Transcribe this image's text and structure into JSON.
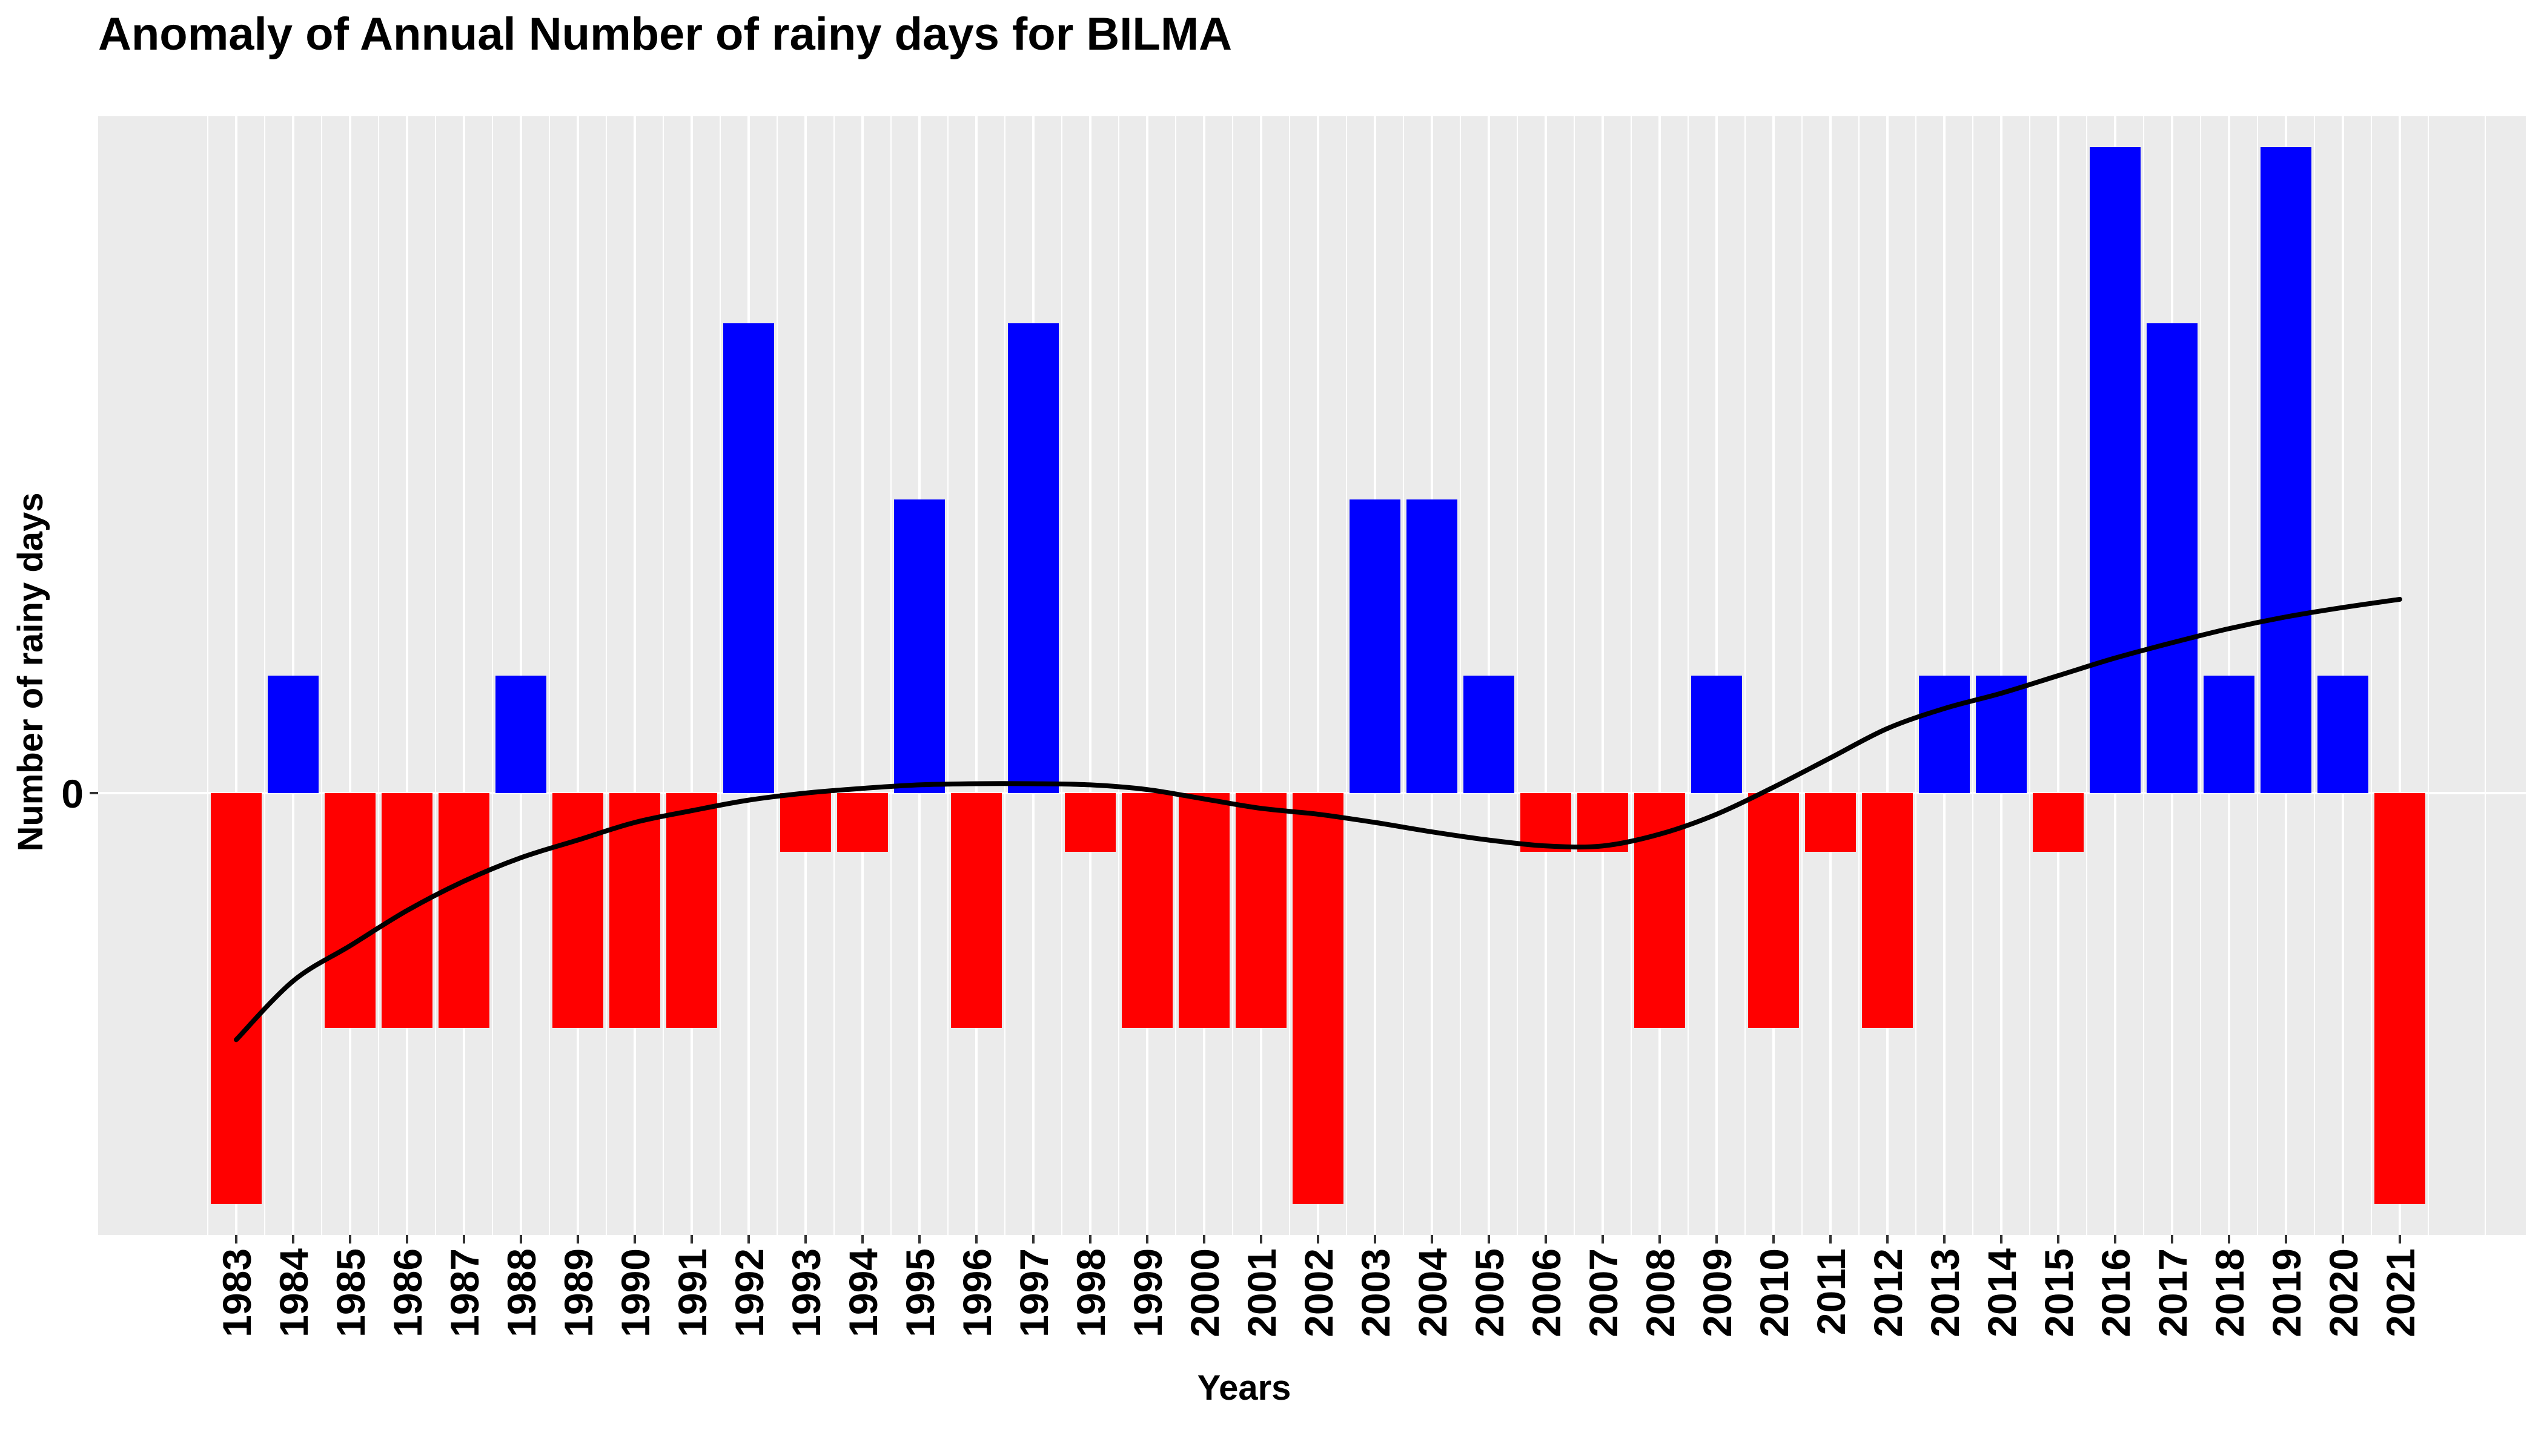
{
  "chart_data": {
    "type": "bar",
    "title": "Anomaly of Annual Number of rainy days for BILMA",
    "xlabel": "Years",
    "ylabel": "Number of rainy days",
    "categories": [
      "1983",
      "1984",
      "1985",
      "1986",
      "1987",
      "1988",
      "1989",
      "1990",
      "1991",
      "1992",
      "1993",
      "1994",
      "1995",
      "1996",
      "1997",
      "1998",
      "1999",
      "2000",
      "2001",
      "2002",
      "2003",
      "2004",
      "2005",
      "2006",
      "2007",
      "2008",
      "2009",
      "2010",
      "2011",
      "2012",
      "2013",
      "2014",
      "2015",
      "2016",
      "2017",
      "2018",
      "2019",
      "2020",
      "2021"
    ],
    "values": [
      -3.5,
      1,
      -2,
      -2,
      -2,
      1,
      -2,
      -2,
      -2,
      4,
      -0.5,
      -0.5,
      2.5,
      -2,
      4,
      -0.5,
      -2,
      -2,
      -2,
      -3.5,
      2.5,
      2.5,
      1,
      -0.5,
      -0.5,
      -2,
      1,
      -2,
      -0.5,
      -2,
      1,
      1,
      -0.5,
      5.5,
      4,
      1,
      5.5,
      1,
      -3.5
    ],
    "trend": [
      -2.1,
      -1.6,
      -1.3,
      -1.0,
      -0.75,
      -0.55,
      -0.4,
      -0.25,
      -0.15,
      -0.06,
      0.0,
      0.04,
      0.07,
      0.08,
      0.08,
      0.07,
      0.03,
      -0.05,
      -0.13,
      -0.18,
      -0.25,
      -0.33,
      -0.4,
      -0.45,
      -0.45,
      -0.35,
      -0.18,
      0.05,
      0.3,
      0.55,
      0.72,
      0.85,
      1.0,
      1.15,
      1.28,
      1.4,
      1.5,
      1.58,
      1.65
    ],
    "yticks": [
      0
    ],
    "ylim": [
      -3.9,
      6.0
    ],
    "colors": {
      "positive": "#0000ff",
      "negative": "#ff0000",
      "trend": "#000000",
      "panel": "#ebebeb",
      "grid": "#ffffff"
    },
    "grid": true,
    "legend": "none"
  }
}
